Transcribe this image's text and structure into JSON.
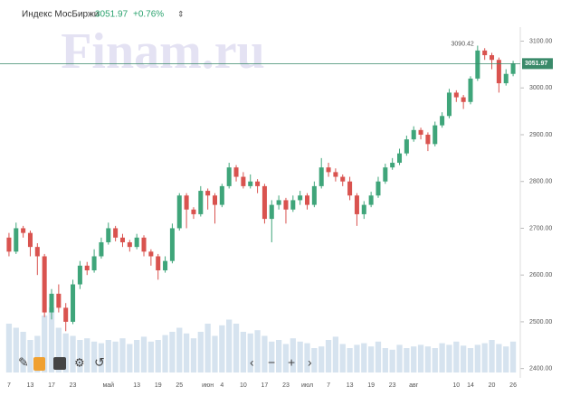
{
  "chart_data": {
    "type": "candlestick",
    "title": "Индекс МосБиржи",
    "change": "+0.76%",
    "watermark": "Finam.ru",
    "annotation": {
      "text": "3090.42",
      "index": 66
    },
    "categories": [
      "7",
      null,
      null,
      "13",
      null,
      null,
      "17",
      null,
      null,
      "23",
      null,
      null,
      null,
      null,
      "май",
      null,
      null,
      null,
      "13",
      null,
      null,
      "19",
      null,
      null,
      "25",
      null,
      null,
      null,
      "июн",
      null,
      "4",
      null,
      null,
      "10",
      null,
      null,
      "17",
      null,
      null,
      "23",
      null,
      null,
      "июл",
      null,
      null,
      "7",
      null,
      null,
      "13",
      null,
      null,
      "19",
      null,
      null,
      "23",
      null,
      null,
      "авг",
      null,
      null,
      null,
      null,
      null,
      "10",
      null,
      "14",
      null,
      null,
      "20",
      null,
      null,
      "26"
    ],
    "open": [
      2680,
      2650,
      2700,
      2690,
      2660,
      2640,
      2520,
      2560,
      2530,
      2500,
      2580,
      2620,
      2610,
      2640,
      2670,
      2700,
      2680,
      2670,
      2660,
      2680,
      2650,
      2640,
      2610,
      2630,
      2700,
      2770,
      2740,
      2730,
      2780,
      2770,
      2750,
      2790,
      2830,
      2810,
      2790,
      2800,
      2790,
      2720,
      2750,
      2760,
      2740,
      2760,
      2770,
      2750,
      2790,
      2830,
      2820,
      2810,
      2800,
      2770,
      2730,
      2750,
      2770,
      2800,
      2830,
      2840,
      2860,
      2890,
      2910,
      2900,
      2880,
      2920,
      2940,
      2990,
      2980,
      2970,
      3020,
      3080,
      3070,
      3060,
      3010,
      3030
    ],
    "high": [
      2690,
      2712,
      2705,
      2695,
      2668,
      2645,
      2570,
      2580,
      2540,
      2590,
      2630,
      2628,
      2655,
      2680,
      2712,
      2705,
      2688,
      2675,
      2688,
      2685,
      2655,
      2645,
      2640,
      2710,
      2775,
      2775,
      2745,
      2790,
      2785,
      2775,
      2795,
      2840,
      2835,
      2820,
      2815,
      2805,
      2795,
      2760,
      2770,
      2765,
      2770,
      2780,
      2775,
      2800,
      2850,
      2840,
      2828,
      2815,
      2810,
      2775,
      2758,
      2778,
      2810,
      2838,
      2850,
      2870,
      2898,
      2918,
      2915,
      2905,
      2928,
      2948,
      2998,
      2995,
      2985,
      3025,
      3090.42,
      3085,
      3075,
      3065,
      3040,
      3058
    ],
    "low": [
      2640,
      2645,
      2680,
      2640,
      2600,
      2510,
      2505,
      2520,
      2480,
      2495,
      2570,
      2600,
      2605,
      2635,
      2665,
      2672,
      2660,
      2650,
      2655,
      2640,
      2620,
      2590,
      2605,
      2625,
      2695,
      2700,
      2720,
      2725,
      2740,
      2710,
      2745,
      2785,
      2800,
      2785,
      2785,
      2775,
      2710,
      2670,
      2740,
      2710,
      2735,
      2750,
      2740,
      2745,
      2785,
      2810,
      2800,
      2790,
      2760,
      2705,
      2720,
      2745,
      2765,
      2795,
      2825,
      2835,
      2855,
      2885,
      2890,
      2865,
      2875,
      2915,
      2935,
      2970,
      2955,
      2965,
      3015,
      3060,
      3040,
      2990,
      3005,
      3025
    ],
    "close": [
      2650,
      2700,
      2690,
      2660,
      2640,
      2520,
      2560,
      2530,
      2500,
      2580,
      2620,
      2610,
      2640,
      2670,
      2700,
      2680,
      2670,
      2660,
      2680,
      2650,
      2640,
      2610,
      2630,
      2700,
      2770,
      2740,
      2730,
      2780,
      2770,
      2750,
      2790,
      2830,
      2810,
      2790,
      2800,
      2790,
      2720,
      2750,
      2760,
      2740,
      2760,
      2770,
      2750,
      2790,
      2830,
      2820,
      2810,
      2800,
      2770,
      2730,
      2750,
      2770,
      2800,
      2830,
      2840,
      2860,
      2890,
      2910,
      2900,
      2880,
      2920,
      2940,
      2990,
      2980,
      2970,
      3020,
      3080,
      3070,
      3060,
      3010,
      3030,
      3051.97
    ],
    "volume": [
      60,
      55,
      50,
      40,
      45,
      70,
      80,
      55,
      48,
      45,
      40,
      42,
      38,
      36,
      40,
      38,
      42,
      35,
      40,
      44,
      38,
      40,
      46,
      50,
      55,
      48,
      42,
      50,
      60,
      45,
      58,
      65,
      60,
      50,
      48,
      52,
      45,
      38,
      40,
      35,
      42,
      38,
      36,
      30,
      32,
      40,
      44,
      35,
      30,
      34,
      36,
      32,
      38,
      30,
      28,
      34,
      30,
      32,
      34,
      32,
      30,
      36,
      34,
      38,
      33,
      30,
      34,
      36,
      40,
      35,
      32,
      38
    ],
    "up_color": "#3fa57a",
    "down_color": "#d9534f",
    "volume_color": "#d6e3ef",
    "ylim": [
      2380,
      3130
    ],
    "yticks": [
      {
        "value": 2400,
        "label": "2400.00"
      },
      {
        "value": 2500,
        "label": "2500.00"
      },
      {
        "value": 2600,
        "label": "2600.00"
      },
      {
        "value": 2700,
        "label": "2700.00"
      },
      {
        "value": 2800,
        "label": "2800.00"
      },
      {
        "value": 2900,
        "label": "2900.00"
      },
      {
        "value": 3000,
        "label": "3000.00"
      },
      {
        "value": 3100,
        "label": "3100.00"
      }
    ]
  }
}
